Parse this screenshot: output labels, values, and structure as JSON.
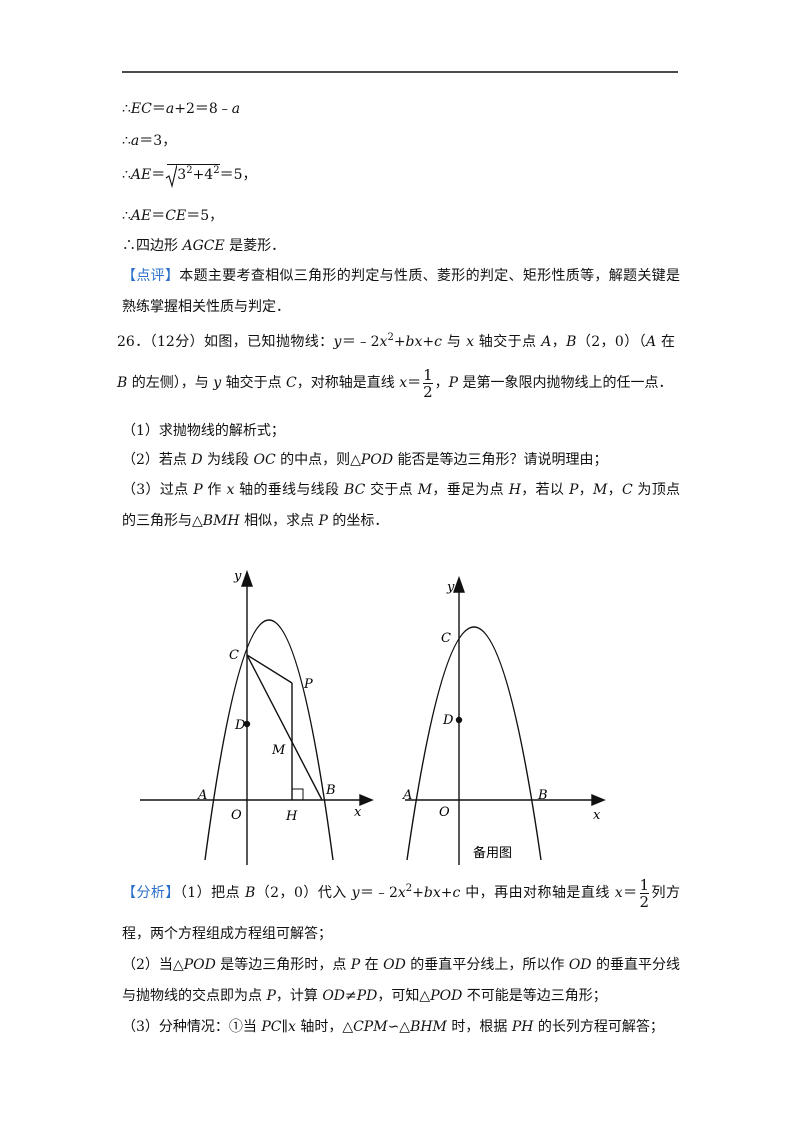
{
  "solution": [
    [
      "∴",
      "EC",
      "＝",
      "a",
      "+2＝8﹣",
      "a"
    ],
    [
      "∴",
      "a",
      "＝3，"
    ],
    [
      "∴",
      "AE",
      "＝",
      {
        "sqrt": [
          "3",
          {
            "sup": "2"
          },
          "+",
          "4",
          {
            "sup": "2"
          }
        ]
      },
      "＝5，"
    ],
    [
      "∴",
      "AE",
      "＝",
      "CE",
      "＝5，"
    ],
    [
      "∴四边形 ",
      "AGCE",
      " 是菱形．"
    ]
  ],
  "comment": [
    "【点评】",
    "本题主要考查相似三角形的判定与性质、菱形的判定、矩形性质等，解题关键是熟练掌握相关性质与判定．"
  ],
  "problem": {
    "stem": [
      "26．（12分）如图，已知抛物线：",
      "y",
      "＝﹣2",
      "x",
      {
        "sup": "2"
      },
      "+",
      "bx",
      "+",
      "c",
      " 与 ",
      "x",
      " 轴交于点 ",
      "A",
      "，",
      "B",
      "（2，0）（",
      "A",
      " 在 ",
      "B",
      " 的左侧），与 ",
      "y",
      " 轴交于点 ",
      "C",
      "，对称轴是直线 ",
      "x",
      "＝",
      {
        "frac": [
          "1",
          "2"
        ]
      },
      "，",
      "P",
      " 是第一象限内抛物线上的任一点．"
    ],
    "questions": [
      [
        "（1）求抛物线的解析式；"
      ],
      [
        "（2）若点 ",
        "D",
        " 为线段 ",
        "OC",
        " 的中点，则△",
        "POD",
        " 能否是等边三角形？请说明理由；"
      ],
      [
        "（3）过点 ",
        "P",
        " 作 ",
        "x",
        " 轴的垂线与线段 ",
        "BC",
        " 交于点 ",
        "M",
        "，垂足为点 ",
        "H",
        "，若以 ",
        "P",
        "，",
        "M",
        "，",
        "C",
        " 为顶点的三角形与△",
        "BMH",
        " 相似，求点 ",
        "P",
        " 的坐标．"
      ]
    ]
  },
  "figure1": {
    "labels": {
      "y": "y",
      "C": "C",
      "P": "P",
      "D": "D",
      "M": "M",
      "A": "A",
      "O": "O",
      "H": "H",
      "B": "B",
      "x": "x"
    }
  },
  "figure2": {
    "labels": {
      "y": "y",
      "C": "C",
      "D": "D",
      "A": "A",
      "O": "O",
      "B": "B",
      "x": "x"
    },
    "caption": "备用图"
  },
  "analysis": [
    [
      "【分析】",
      "（1）把点 ",
      "B",
      "（2，0）代入 ",
      "y",
      "＝﹣2",
      "x",
      {
        "sup": "2"
      },
      "+",
      "bx",
      "+",
      "c",
      " 中，再由对称轴是直线 ",
      "x",
      "＝",
      {
        "frac": [
          "1",
          "2"
        ]
      },
      "列方程，两个方程组成方程组可解答；"
    ],
    [
      "（2）当△",
      "POD",
      " 是等边三角形时，点 ",
      "P",
      " 在 ",
      "OD",
      " 的垂直平分线上，所以作 ",
      "OD",
      " 的垂直平分线与抛物线的交点即为点 ",
      "P",
      "，计算 ",
      "OD",
      "≠",
      "PD",
      "，可知△",
      "POD",
      " 不可能是等边三角形；"
    ],
    [
      "（3）分种情况：①当 ",
      "PC",
      "∥",
      "x",
      " 轴时，△",
      "CPM",
      "∽△",
      "BHM",
      " 时，根据 ",
      "PH",
      " 的长列方程可解答；"
    ]
  ]
}
